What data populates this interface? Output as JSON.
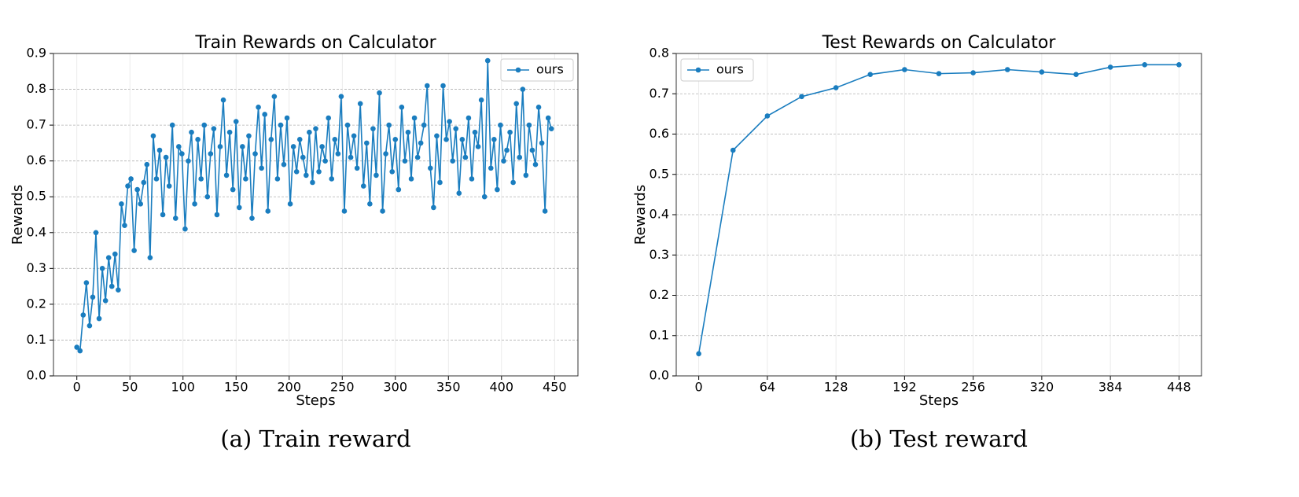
{
  "chart_data": [
    {
      "type": "line",
      "title": "Train Rewards on Calculator",
      "xlabel": "Steps",
      "ylabel": "Rewards",
      "caption": "(a) Train reward",
      "legend": "upper right",
      "grid": true,
      "xlim": [
        -22,
        472
      ],
      "xticks": [
        0,
        50,
        100,
        150,
        200,
        250,
        300,
        350,
        400,
        450
      ],
      "ylim": [
        0,
        0.9
      ],
      "yticks": [
        {
          "value": 0,
          "label": "0.0"
        },
        0.1,
        0.2,
        0.3,
        0.4,
        0.5,
        0.6,
        0.7,
        0.8,
        0.9
      ],
      "x": [
        0,
        3,
        6,
        9,
        12,
        15,
        18,
        21,
        24,
        27,
        30,
        33,
        36,
        39,
        42,
        45,
        48,
        51,
        54,
        57,
        60,
        63,
        66,
        69,
        72,
        75,
        78,
        81,
        84,
        87,
        90,
        93,
        96,
        99,
        102,
        105,
        108,
        111,
        114,
        117,
        120,
        123,
        126,
        129,
        132,
        135,
        138,
        141,
        144,
        147,
        150,
        153,
        156,
        159,
        162,
        165,
        168,
        171,
        174,
        177,
        180,
        183,
        186,
        189,
        192,
        195,
        198,
        201,
        204,
        207,
        210,
        213,
        216,
        219,
        222,
        225,
        228,
        231,
        234,
        237,
        240,
        243,
        246,
        249,
        252,
        255,
        258,
        261,
        264,
        267,
        270,
        273,
        276,
        279,
        282,
        285,
        288,
        291,
        294,
        297,
        300,
        303,
        306,
        309,
        312,
        315,
        318,
        321,
        324,
        327,
        330,
        333,
        336,
        339,
        342,
        345,
        348,
        351,
        354,
        357,
        360,
        363,
        366,
        369,
        372,
        375,
        378,
        381,
        384,
        387,
        390,
        393,
        396,
        399,
        402,
        405,
        408,
        411,
        414,
        417,
        420,
        423,
        426,
        429,
        432,
        435,
        438,
        441,
        444,
        447
      ],
      "series": [
        {
          "name": "ours",
          "color": "#1a7dbf",
          "values": [
            0.08,
            0.07,
            0.17,
            0.26,
            0.14,
            0.22,
            0.4,
            0.16,
            0.3,
            0.21,
            0.33,
            0.25,
            0.34,
            0.24,
            0.48,
            0.42,
            0.53,
            0.55,
            0.35,
            0.52,
            0.48,
            0.54,
            0.59,
            0.33,
            0.67,
            0.55,
            0.63,
            0.45,
            0.61,
            0.53,
            0.7,
            0.44,
            0.64,
            0.62,
            0.41,
            0.6,
            0.68,
            0.48,
            0.66,
            0.55,
            0.7,
            0.5,
            0.62,
            0.69,
            0.45,
            0.64,
            0.77,
            0.56,
            0.68,
            0.52,
            0.71,
            0.47,
            0.64,
            0.55,
            0.67,
            0.44,
            0.62,
            0.75,
            0.58,
            0.73,
            0.46,
            0.66,
            0.78,
            0.55,
            0.7,
            0.59,
            0.72,
            0.48,
            0.64,
            0.57,
            0.66,
            0.61,
            0.56,
            0.68,
            0.54,
            0.69,
            0.57,
            0.64,
            0.6,
            0.72,
            0.55,
            0.66,
            0.62,
            0.78,
            0.46,
            0.7,
            0.61,
            0.67,
            0.58,
            0.76,
            0.53,
            0.65,
            0.48,
            0.69,
            0.56,
            0.79,
            0.46,
            0.62,
            0.7,
            0.57,
            0.66,
            0.52,
            0.75,
            0.6,
            0.68,
            0.55,
            0.72,
            0.61,
            0.65,
            0.7,
            0.81,
            0.58,
            0.47,
            0.67,
            0.54,
            0.81,
            0.66,
            0.71,
            0.6,
            0.69,
            0.51,
            0.66,
            0.61,
            0.72,
            0.55,
            0.68,
            0.64,
            0.77,
            0.5,
            0.88,
            0.58,
            0.66,
            0.52,
            0.7,
            0.6,
            0.63,
            0.68,
            0.54,
            0.76,
            0.61,
            0.8,
            0.56,
            0.7,
            0.63,
            0.59,
            0.75,
            0.65,
            0.46,
            0.72,
            0.69
          ]
        }
      ]
    },
    {
      "type": "line",
      "title": "Test Rewards on Calculator",
      "xlabel": "Steps",
      "ylabel": "Rewards",
      "caption": "(b) Test reward",
      "legend": "upper left",
      "grid": true,
      "xlim": [
        -21,
        469
      ],
      "xticks": [
        0,
        64,
        128,
        192,
        256,
        320,
        384,
        448
      ],
      "ylim": [
        0,
        0.8
      ],
      "yticks": [
        {
          "value": 0,
          "label": "0.0"
        },
        0.1,
        0.2,
        0.3,
        0.4,
        0.5,
        0.6,
        0.7,
        0.8
      ],
      "x": [
        0,
        32,
        64,
        96,
        128,
        160,
        192,
        224,
        256,
        288,
        320,
        352,
        384,
        416,
        448
      ],
      "series": [
        {
          "name": "ours",
          "color": "#1a7dbf",
          "values": [
            0.055,
            0.56,
            0.645,
            0.693,
            0.715,
            0.748,
            0.76,
            0.75,
            0.752,
            0.76,
            0.754,
            0.748,
            0.766,
            0.772,
            0.772
          ]
        }
      ]
    }
  ]
}
